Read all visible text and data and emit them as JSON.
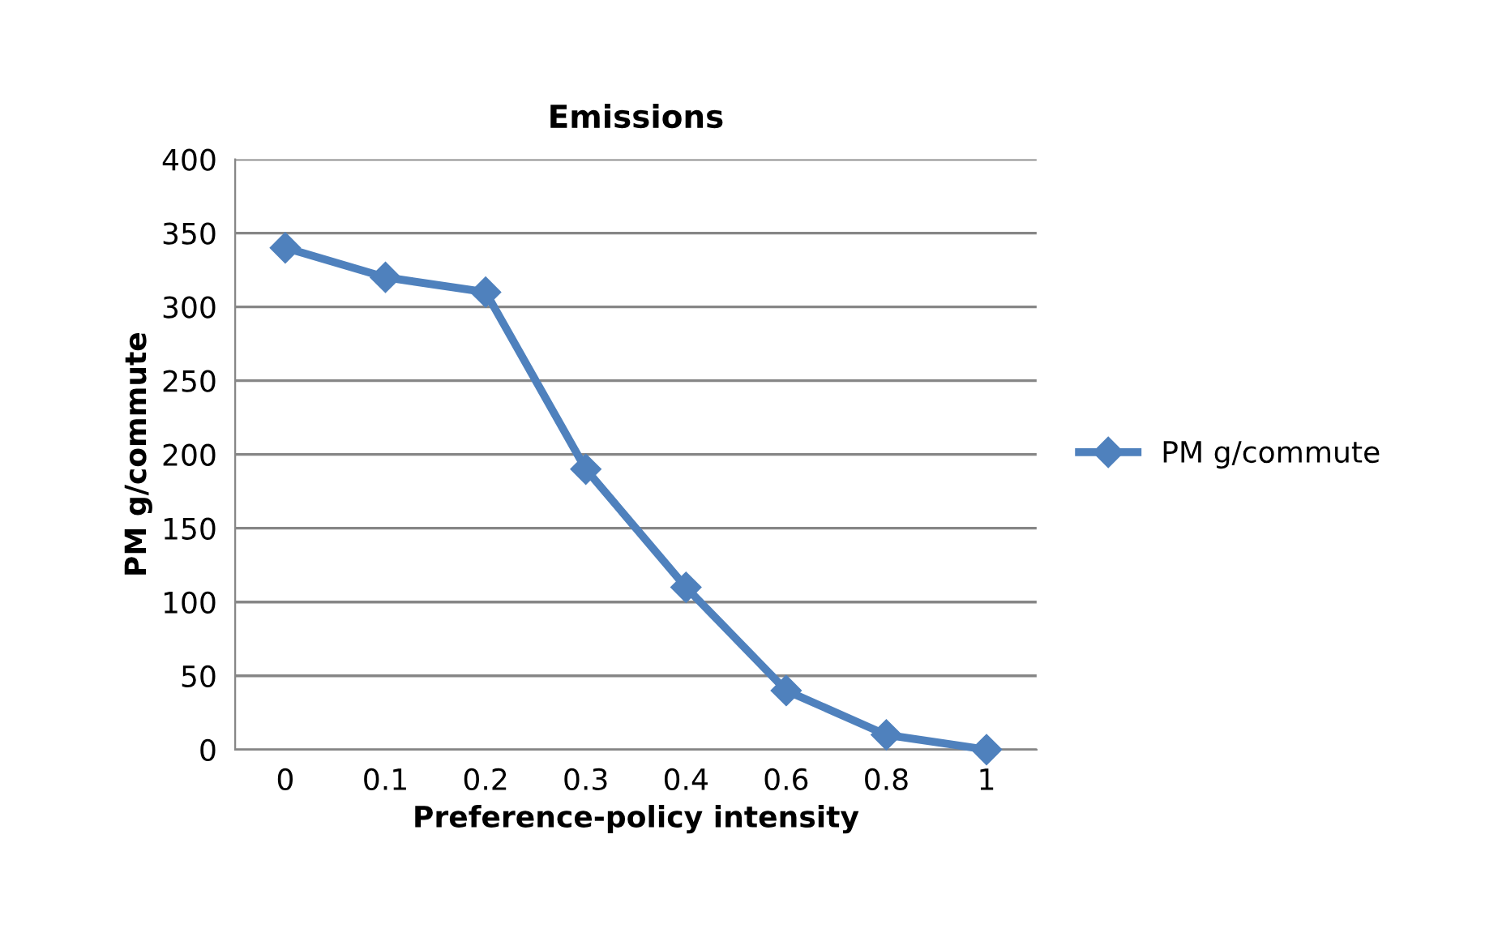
{
  "chart_data": {
    "type": "line",
    "title": "Emissions",
    "xlabel": "Preference-policy intensity",
    "ylabel": "PM g/commute",
    "categories": [
      "0",
      "0.1",
      "0.2",
      "0.3",
      "0.4",
      "0.6",
      "0.8",
      "1"
    ],
    "series": [
      {
        "name": "PM g/commute",
        "color": "#4f81bd",
        "values": [
          340,
          320,
          310,
          190,
          110,
          40,
          10,
          0
        ]
      }
    ],
    "ylim": [
      0,
      400
    ],
    "yticks": [
      0,
      50,
      100,
      150,
      200,
      250,
      300,
      350,
      400
    ],
    "grid": "y",
    "legend": "right",
    "marker": "diamond",
    "line_style": "solid"
  }
}
